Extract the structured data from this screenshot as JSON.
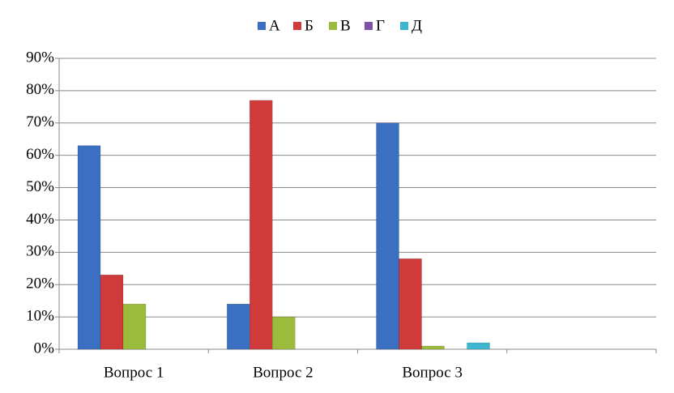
{
  "chart_data": {
    "type": "bar",
    "categories": [
      "Вопрос 1",
      "Вопрос 2",
      "Вопрос 3",
      null
    ],
    "series": [
      {
        "name": "А",
        "color": "#3b6fc1",
        "values": [
          63,
          14,
          70,
          null
        ]
      },
      {
        "name": "Б",
        "color": "#cf3b3b",
        "values": [
          23,
          77,
          28,
          null
        ]
      },
      {
        "name": "В",
        "color": "#9bbb3d",
        "values": [
          14,
          10,
          1,
          null
        ]
      },
      {
        "name": "Г",
        "color": "#7a52a8",
        "values": [
          0,
          0,
          0,
          null
        ]
      },
      {
        "name": "Д",
        "color": "#3cb7cf",
        "values": [
          0,
          0,
          2,
          null
        ]
      }
    ],
    "ylim": [
      0,
      90
    ],
    "yticks": [
      {
        "value": 0,
        "label": "0%"
      },
      {
        "value": 10,
        "label": "10%"
      },
      {
        "value": 20,
        "label": "20%"
      },
      {
        "value": 30,
        "label": "30%"
      },
      {
        "value": 40,
        "label": "40%"
      },
      {
        "value": 50,
        "label": "50%"
      },
      {
        "value": 60,
        "label": "60%"
      },
      {
        "value": 70,
        "label": "70%"
      },
      {
        "value": 80,
        "label": "80%"
      },
      {
        "value": 90,
        "label": "90%"
      }
    ],
    "grid": true,
    "legend": "top"
  }
}
